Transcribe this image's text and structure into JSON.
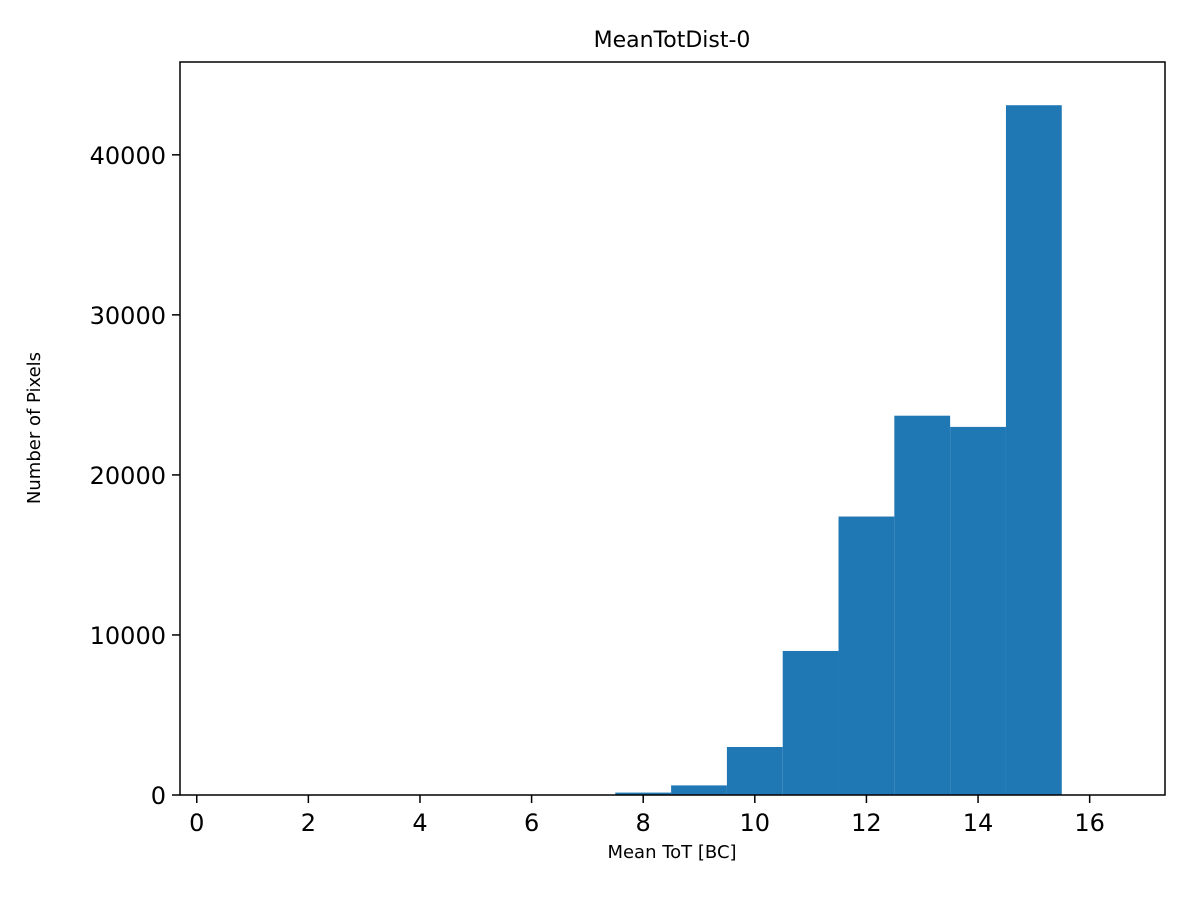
{
  "figure": {
    "background": "#ffffff",
    "bar_color": "#1f77b4",
    "axis_color": "#000000"
  },
  "chart_data": {
    "type": "bar",
    "subtype": "histogram",
    "title": "MeanTotDist-0",
    "xlabel": "Mean ToT [BC]",
    "ylabel": "Number of Pixels",
    "xlim": [
      -0.3,
      17.35
    ],
    "ylim": [
      0,
      45800
    ],
    "x_ticks": [
      0,
      2,
      4,
      6,
      8,
      10,
      12,
      14,
      16
    ],
    "y_ticks": [
      0,
      10000,
      20000,
      30000,
      40000
    ],
    "grid": false,
    "legend": "none",
    "bin_width": 1,
    "bins_left_edge": [
      7.5,
      8.5,
      9.5,
      10.5,
      11.5,
      12.5,
      13.5,
      14.5
    ],
    "values": [
      150,
      600,
      3000,
      9000,
      17400,
      23700,
      23000,
      43100
    ]
  }
}
